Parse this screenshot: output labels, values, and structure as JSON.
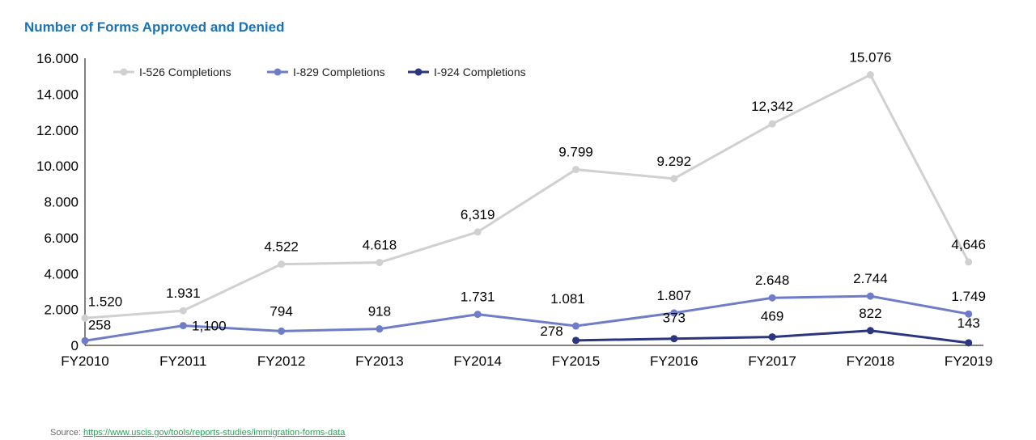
{
  "chart_data": {
    "type": "line",
    "title": "Number of Forms Approved and Denied",
    "xlabel": "",
    "ylabel": "",
    "ylim": [
      0,
      16000
    ],
    "yticks": [
      0,
      2000,
      4000,
      6000,
      8000,
      10000,
      12000,
      14000,
      16000
    ],
    "ytick_labels": [
      "0",
      "2.000",
      "4.000",
      "6.000",
      "8.000",
      "10.000",
      "12.000",
      "14.000",
      "16.000"
    ],
    "categories": [
      "FY2010",
      "FY2011",
      "FY2012",
      "FY2013",
      "FY2014",
      "FY2015",
      "FY2016",
      "FY2017",
      "FY2018",
      "FY2019"
    ],
    "grid": false,
    "legend_placement": "top-left",
    "series": [
      {
        "name": "I-526 Completions",
        "color": "#d0d0d0",
        "values": [
          1520,
          1931,
          4522,
          4618,
          6319,
          9799,
          9292,
          12342,
          15076,
          4646
        ],
        "labels": [
          "1.520",
          "1.931",
          "4.522",
          "4.618",
          "6,319",
          "9.799",
          "9.292",
          "12,342",
          "15.076",
          "4,646"
        ]
      },
      {
        "name": "I-829 Completions",
        "color": "#6f7dc8",
        "values": [
          258,
          1100,
          794,
          918,
          1731,
          1081,
          1807,
          2648,
          2744,
          1749
        ],
        "labels": [
          "258",
          "1,100",
          "794",
          "918",
          "1.731",
          "1.081",
          "1.807",
          "2.648",
          "2.744",
          "1.749"
        ]
      },
      {
        "name": "I-924 Completions",
        "color": "#2b3580",
        "values": [
          null,
          null,
          null,
          null,
          null,
          278,
          373,
          469,
          822,
          143
        ],
        "labels": [
          null,
          null,
          null,
          null,
          null,
          "278",
          "373",
          "469",
          "822",
          "143"
        ]
      }
    ]
  },
  "source": {
    "label": "Source:",
    "link": "https://www.uscis.gov/tools/reports-studies/immigration-forms-data"
  }
}
